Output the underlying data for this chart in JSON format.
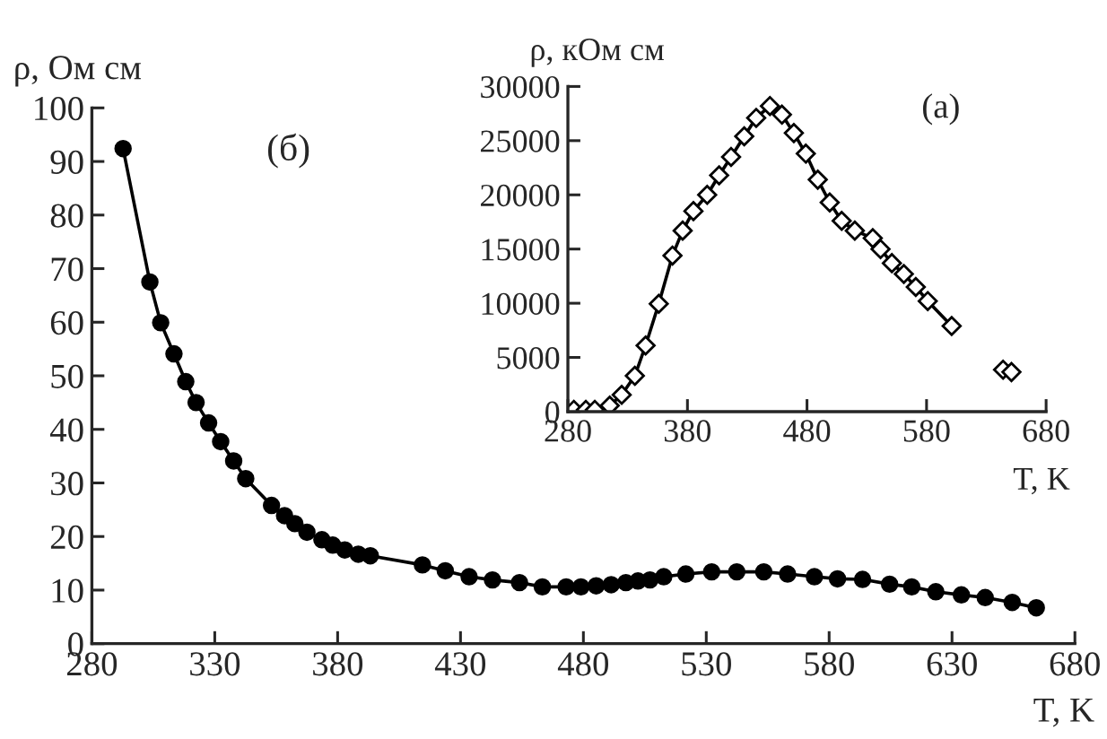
{
  "chart_data": [
    {
      "type": "line",
      "xlabel": "T, K",
      "ylabel": "ρ, Ом см",
      "annotations": [
        "(б)"
      ],
      "marker": "circle",
      "line_style": "solid",
      "xlim": [
        280,
        680
      ],
      "xticks": [
        280,
        330,
        380,
        430,
        480,
        530,
        580,
        630,
        680
      ],
      "ylim": [
        0,
        100
      ],
      "yticks": [
        0,
        10,
        20,
        30,
        40,
        50,
        60,
        70,
        80,
        90,
        100
      ],
      "series": [
        {
          "color": "#000000",
          "x": [
            292.7,
            303.6,
            308,
            313.4,
            318.2,
            322.4,
            327.5,
            332.4,
            337.7,
            342.6,
            353.1,
            358.4,
            362.6,
            367.5,
            373.6,
            378,
            382.9,
            388.4,
            393.3,
            414.5,
            423.8,
            433.5,
            443,
            454,
            463.3,
            473,
            479,
            485.2,
            491.3,
            497.3,
            502.2,
            507.1,
            512.7,
            521.7,
            532.2,
            542.4,
            553.4,
            563.1,
            574,
            583.4,
            593.6,
            604.6,
            613.6,
            623.4,
            633.8,
            643.5,
            654.5,
            664.3
          ],
          "values": [
            92.4,
            67.5,
            59.9,
            54.1,
            48.9,
            45,
            41.2,
            37.7,
            34.1,
            30.8,
            25.8,
            23.9,
            22.4,
            20.8,
            19.4,
            18.4,
            17.5,
            16.7,
            16.4,
            14.7,
            13.6,
            12.5,
            11.9,
            11.4,
            10.6,
            10.6,
            10.6,
            10.8,
            11.0,
            11.4,
            11.7,
            11.9,
            12.5,
            13.0,
            13.4,
            13.4,
            13.4,
            13.0,
            12.5,
            12.1,
            12.0,
            11.1,
            10.6,
            9.7,
            9.1,
            8.6,
            7.7,
            6.7
          ]
        }
      ]
    },
    {
      "type": "line",
      "xlabel": "T, K",
      "ylabel": "ρ, кОм см",
      "annotations": [
        "(а)"
      ],
      "marker": "diamond",
      "line_style": "solid",
      "xlim": [
        280,
        680
      ],
      "xticks": [
        280,
        380,
        480,
        580,
        680
      ],
      "ylim": [
        0,
        30000
      ],
      "yticks": [
        0,
        5000,
        10000,
        15000,
        20000,
        25000,
        30000
      ],
      "series": [
        {
          "color": "#000000",
          "x": [
            285,
            295,
            302.5,
            315,
            325,
            336,
            345,
            356,
            367.5,
            376,
            385,
            396.5,
            406.5,
            416.5,
            427.5,
            437.5,
            449,
            459,
            469,
            479,
            489,
            499,
            509,
            520,
            535,
            541.5,
            551,
            561,
            571,
            581,
            601,
            622,
            644,
            651
          ],
          "values": [
            166,
            166,
            166,
            550,
            1550,
            3300,
            6100,
            9950,
            14400,
            16700,
            18500,
            20000,
            21800,
            23500,
            25400,
            27100,
            28200,
            27400,
            25700,
            23800,
            21400,
            19300,
            17600,
            16700,
            16000,
            15000,
            13700,
            12700,
            11500,
            10200,
            7900,
            null,
            3870,
            3650
          ]
        }
      ]
    }
  ]
}
